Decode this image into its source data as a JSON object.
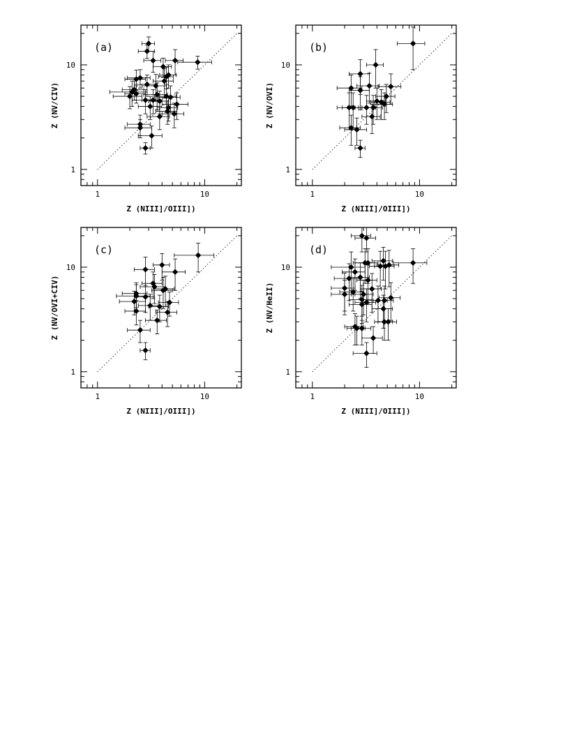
{
  "chart_data": [
    {
      "type": "scatter",
      "panel_label": "(a)",
      "xlabel": "Z (NIII]/OIII])",
      "ylabel": "Z (NV/CIV)",
      "xscale": "log",
      "yscale": "log",
      "xlim": [
        0.7,
        22
      ],
      "ylim": [
        0.7,
        24
      ],
      "xticks": [
        "1",
        "10"
      ],
      "yticks": [
        "1",
        "10"
      ],
      "reference_line": "y = x (dotted)",
      "points": [
        {
          "x": 3.0,
          "y": 16.0,
          "xerr": 0.4,
          "yerr": 2.5
        },
        {
          "x": 2.9,
          "y": 13.5,
          "xerr": 0.5,
          "yerr": 2.0
        },
        {
          "x": 3.3,
          "y": 11.0,
          "xerr": 0.6,
          "yerr": 2.5
        },
        {
          "x": 5.3,
          "y": 11.0,
          "xerr": 1.0,
          "yerr": 3.0
        },
        {
          "x": 8.6,
          "y": 10.6,
          "xerr": 3.0,
          "yerr": 1.5
        },
        {
          "x": 4.1,
          "y": 9.6,
          "xerr": 0.8,
          "yerr": 2.0
        },
        {
          "x": 4.6,
          "y": 8.0,
          "xerr": 0.8,
          "yerr": 2.0
        },
        {
          "x": 4.4,
          "y": 7.7,
          "xerr": 0.7,
          "yerr": 1.8
        },
        {
          "x": 2.5,
          "y": 7.5,
          "xerr": 0.6,
          "yerr": 1.5
        },
        {
          "x": 2.3,
          "y": 7.3,
          "xerr": 0.5,
          "yerr": 1.6
        },
        {
          "x": 4.2,
          "y": 7.0,
          "xerr": 0.9,
          "yerr": 2.2
        },
        {
          "x": 2.9,
          "y": 6.5,
          "xerr": 0.7,
          "yerr": 1.5
        },
        {
          "x": 3.5,
          "y": 6.3,
          "xerr": 0.9,
          "yerr": 1.8
        },
        {
          "x": 2.2,
          "y": 5.8,
          "xerr": 0.5,
          "yerr": 1.2
        },
        {
          "x": 2.1,
          "y": 5.5,
          "xerr": 0.8,
          "yerr": 1.5
        },
        {
          "x": 2.3,
          "y": 5.3,
          "xerr": 0.5,
          "yerr": 1.0
        },
        {
          "x": 3.6,
          "y": 5.2,
          "xerr": 0.9,
          "yerr": 1.5
        },
        {
          "x": 2.0,
          "y": 5.0,
          "xerr": 0.6,
          "yerr": 1.2
        },
        {
          "x": 4.4,
          "y": 5.0,
          "xerr": 1.0,
          "yerr": 1.5
        },
        {
          "x": 4.8,
          "y": 4.9,
          "xerr": 1.1,
          "yerr": 1.4
        },
        {
          "x": 2.8,
          "y": 4.6,
          "xerr": 0.7,
          "yerr": 1.2
        },
        {
          "x": 3.3,
          "y": 4.6,
          "xerr": 0.7,
          "yerr": 1.2
        },
        {
          "x": 3.8,
          "y": 4.5,
          "xerr": 0.8,
          "yerr": 1.1
        },
        {
          "x": 5.5,
          "y": 4.2,
          "xerr": 1.5,
          "yerr": 1.2
        },
        {
          "x": 3.1,
          "y": 4.0,
          "xerr": 0.7,
          "yerr": 1.0
        },
        {
          "x": 4.6,
          "y": 3.9,
          "xerr": 1.0,
          "yerr": 1.0
        },
        {
          "x": 4.5,
          "y": 3.6,
          "xerr": 1.0,
          "yerr": 0.9
        },
        {
          "x": 5.2,
          "y": 3.4,
          "xerr": 1.2,
          "yerr": 0.9
        },
        {
          "x": 3.8,
          "y": 3.2,
          "xerr": 0.9,
          "yerr": 0.8
        },
        {
          "x": 2.5,
          "y": 2.7,
          "xerr": 0.6,
          "yerr": 0.6
        },
        {
          "x": 2.5,
          "y": 2.5,
          "xerr": 0.7,
          "yerr": 0.5
        },
        {
          "x": 3.2,
          "y": 2.1,
          "xerr": 0.8,
          "yerr": 0.5
        },
        {
          "x": 2.8,
          "y": 1.6,
          "xerr": 0.3,
          "yerr": 0.2
        }
      ]
    },
    {
      "type": "scatter",
      "panel_label": "(b)",
      "xlabel": "Z (NIII]/OIII])",
      "ylabel": "Z (NV/OVI)",
      "xscale": "log",
      "yscale": "log",
      "xlim": [
        0.7,
        22
      ],
      "ylim": [
        0.7,
        24
      ],
      "xticks": [
        "1",
        "10"
      ],
      "yticks": [
        "1",
        "10"
      ],
      "reference_line": "y = x (dotted)",
      "points": [
        {
          "x": 8.7,
          "y": 16.0,
          "xerr": 2.5,
          "yerr": 7.0
        },
        {
          "x": 3.9,
          "y": 10.0,
          "xerr": 0.7,
          "yerr": 4.0
        },
        {
          "x": 2.8,
          "y": 8.2,
          "xerr": 0.6,
          "yerr": 3.0
        },
        {
          "x": 5.4,
          "y": 6.2,
          "xerr": 1.3,
          "yerr": 2.0
        },
        {
          "x": 2.3,
          "y": 6.0,
          "xerr": 0.6,
          "yerr": 2.0
        },
        {
          "x": 3.4,
          "y": 6.3,
          "xerr": 0.8,
          "yerr": 2.0
        },
        {
          "x": 2.8,
          "y": 5.7,
          "xerr": 0.6,
          "yerr": 2.0
        },
        {
          "x": 4.9,
          "y": 5.0,
          "xerr": 1.0,
          "yerr": 1.5
        },
        {
          "x": 4.0,
          "y": 4.5,
          "xerr": 0.8,
          "yerr": 1.5
        },
        {
          "x": 4.4,
          "y": 4.4,
          "xerr": 0.9,
          "yerr": 1.4
        },
        {
          "x": 4.7,
          "y": 4.2,
          "xerr": 0.9,
          "yerr": 1.2
        },
        {
          "x": 2.2,
          "y": 3.9,
          "xerr": 0.5,
          "yerr": 1.5
        },
        {
          "x": 2.4,
          "y": 3.9,
          "xerr": 0.5,
          "yerr": 1.5
        },
        {
          "x": 3.2,
          "y": 3.9,
          "xerr": 0.7,
          "yerr": 1.2
        },
        {
          "x": 3.7,
          "y": 3.9,
          "xerr": 0.8,
          "yerr": 1.2
        },
        {
          "x": 3.6,
          "y": 3.2,
          "xerr": 0.7,
          "yerr": 1.0
        },
        {
          "x": 2.3,
          "y": 2.5,
          "xerr": 0.5,
          "yerr": 0.8
        },
        {
          "x": 2.6,
          "y": 2.4,
          "xerr": 0.6,
          "yerr": 0.7
        },
        {
          "x": 2.8,
          "y": 1.6,
          "xerr": 0.3,
          "yerr": 0.3
        }
      ]
    },
    {
      "type": "scatter",
      "panel_label": "(c)",
      "xlabel": "Z (NIII]/OIII])",
      "ylabel": "Z (NV/OVI+CIV)",
      "xscale": "log",
      "yscale": "log",
      "xlim": [
        0.7,
        22
      ],
      "ylim": [
        0.7,
        24
      ],
      "xticks": [
        "1",
        "10"
      ],
      "yticks": [
        "1",
        "10"
      ],
      "reference_line": "y = x (dotted)",
      "points": [
        {
          "x": 8.7,
          "y": 13.0,
          "xerr": 3.5,
          "yerr": 4.0
        },
        {
          "x": 4.0,
          "y": 10.5,
          "xerr": 0.7,
          "yerr": 3.0
        },
        {
          "x": 2.8,
          "y": 9.5,
          "xerr": 0.6,
          "yerr": 3.0
        },
        {
          "x": 5.3,
          "y": 9.0,
          "xerr": 1.3,
          "yerr": 3.0
        },
        {
          "x": 3.3,
          "y": 7.0,
          "xerr": 0.7,
          "yerr": 2.0
        },
        {
          "x": 3.4,
          "y": 6.5,
          "xerr": 0.9,
          "yerr": 2.0
        },
        {
          "x": 4.3,
          "y": 6.2,
          "xerr": 0.9,
          "yerr": 2.0
        },
        {
          "x": 4.1,
          "y": 6.0,
          "xerr": 0.9,
          "yerr": 2.0
        },
        {
          "x": 2.3,
          "y": 5.6,
          "xerr": 0.6,
          "yerr": 1.5
        },
        {
          "x": 2.3,
          "y": 5.3,
          "xerr": 0.8,
          "yerr": 1.5
        },
        {
          "x": 2.8,
          "y": 5.2,
          "xerr": 0.6,
          "yerr": 1.5
        },
        {
          "x": 2.2,
          "y": 4.7,
          "xerr": 0.6,
          "yerr": 1.2
        },
        {
          "x": 4.7,
          "y": 4.6,
          "xerr": 1.0,
          "yerr": 1.2
        },
        {
          "x": 3.1,
          "y": 4.3,
          "xerr": 0.7,
          "yerr": 1.2
        },
        {
          "x": 3.8,
          "y": 4.2,
          "xerr": 0.8,
          "yerr": 1.2
        },
        {
          "x": 2.3,
          "y": 3.8,
          "xerr": 0.5,
          "yerr": 1.0
        },
        {
          "x": 4.5,
          "y": 3.7,
          "xerr": 1.0,
          "yerr": 1.0
        },
        {
          "x": 3.6,
          "y": 3.1,
          "xerr": 0.8,
          "yerr": 0.8
        },
        {
          "x": 2.5,
          "y": 2.5,
          "xerr": 0.6,
          "yerr": 0.6
        },
        {
          "x": 2.8,
          "y": 1.6,
          "xerr": 0.3,
          "yerr": 0.3
        }
      ]
    },
    {
      "type": "scatter",
      "panel_label": "(d)",
      "xlabel": "Z (NIII]/OIII])",
      "ylabel": "Z (NV/HeII)",
      "xscale": "log",
      "yscale": "log",
      "xlim": [
        0.7,
        22
      ],
      "ylim": [
        0.7,
        24
      ],
      "xticks": [
        "1",
        "10"
      ],
      "yticks": [
        "1",
        "10"
      ],
      "reference_line": "y = x (dotted)",
      "points": [
        {
          "x": 2.9,
          "y": 20.0,
          "xerr": 0.6,
          "yerr": 6.0
        },
        {
          "x": 3.2,
          "y": 19.0,
          "xerr": 0.7,
          "yerr": 5.0
        },
        {
          "x": 4.6,
          "y": 11.5,
          "xerr": 1.0,
          "yerr": 4.0
        },
        {
          "x": 3.1,
          "y": 11.0,
          "xerr": 0.7,
          "yerr": 4.0
        },
        {
          "x": 3.3,
          "y": 11.0,
          "xerr": 0.8,
          "yerr": 4.0
        },
        {
          "x": 8.7,
          "y": 11.0,
          "xerr": 3.0,
          "yerr": 4.0
        },
        {
          "x": 5.2,
          "y": 10.5,
          "xerr": 1.2,
          "yerr": 4.0
        },
        {
          "x": 4.3,
          "y": 10.2,
          "xerr": 0.9,
          "yerr": 4.0
        },
        {
          "x": 4.8,
          "y": 10.2,
          "xerr": 1.0,
          "yerr": 4.0
        },
        {
          "x": 2.3,
          "y": 10.0,
          "xerr": 0.8,
          "yerr": 4.0
        },
        {
          "x": 2.5,
          "y": 9.0,
          "xerr": 0.6,
          "yerr": 3.0
        },
        {
          "x": 2.8,
          "y": 8.0,
          "xerr": 0.6,
          "yerr": 3.0
        },
        {
          "x": 2.2,
          "y": 7.8,
          "xerr": 0.6,
          "yerr": 3.0
        },
        {
          "x": 3.3,
          "y": 7.5,
          "xerr": 0.7,
          "yerr": 3.0
        },
        {
          "x": 2.0,
          "y": 6.3,
          "xerr": 0.5,
          "yerr": 2.5
        },
        {
          "x": 3.6,
          "y": 6.2,
          "xerr": 0.8,
          "yerr": 2.5
        },
        {
          "x": 2.4,
          "y": 5.8,
          "xerr": 0.6,
          "yerr": 2.0
        },
        {
          "x": 2.0,
          "y": 5.5,
          "xerr": 0.5,
          "yerr": 2.0
        },
        {
          "x": 3.0,
          "y": 5.5,
          "xerr": 0.7,
          "yerr": 2.0
        },
        {
          "x": 5.4,
          "y": 5.1,
          "xerr": 1.2,
          "yerr": 2.0
        },
        {
          "x": 2.9,
          "y": 4.9,
          "xerr": 0.7,
          "yerr": 1.8
        },
        {
          "x": 4.1,
          "y": 4.8,
          "xerr": 0.9,
          "yerr": 1.8
        },
        {
          "x": 4.7,
          "y": 4.8,
          "xerr": 1.0,
          "yerr": 1.8
        },
        {
          "x": 3.2,
          "y": 4.6,
          "xerr": 0.7,
          "yerr": 1.6
        },
        {
          "x": 2.9,
          "y": 4.4,
          "xerr": 0.7,
          "yerr": 1.5
        },
        {
          "x": 4.6,
          "y": 4.0,
          "xerr": 1.0,
          "yerr": 1.4
        },
        {
          "x": 4.7,
          "y": 3.0,
          "xerr": 0.9,
          "yerr": 1.0
        },
        {
          "x": 5.1,
          "y": 3.0,
          "xerr": 1.0,
          "yerr": 1.0
        },
        {
          "x": 2.5,
          "y": 2.7,
          "xerr": 0.5,
          "yerr": 0.9
        },
        {
          "x": 2.6,
          "y": 2.6,
          "xerr": 0.5,
          "yerr": 0.8
        },
        {
          "x": 2.9,
          "y": 2.6,
          "xerr": 0.6,
          "yerr": 0.8
        },
        {
          "x": 3.7,
          "y": 2.1,
          "xerr": 0.8,
          "yerr": 0.6
        },
        {
          "x": 3.2,
          "y": 1.5,
          "xerr": 0.8,
          "yerr": 0.4
        }
      ]
    }
  ]
}
